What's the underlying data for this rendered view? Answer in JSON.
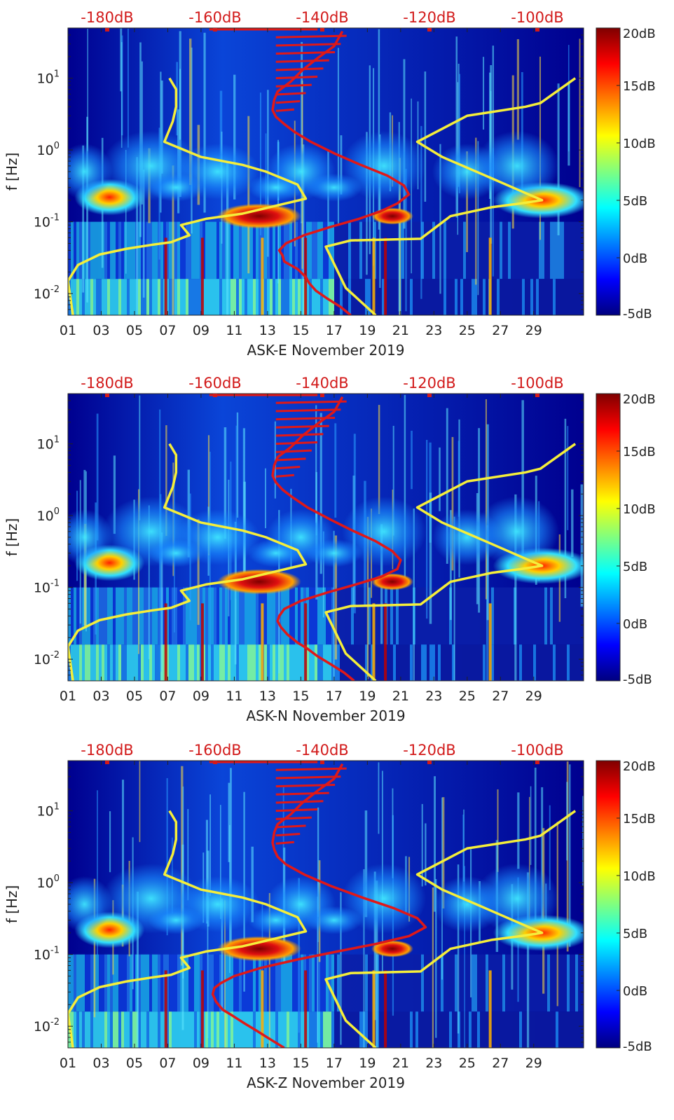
{
  "colors": {
    "red_curve": "#e01818",
    "yellow_curve": "#f5ee3a",
    "top_label": "#d21a1a",
    "axis": "#222222"
  },
  "colormap": "jet",
  "chart_data": [
    {
      "type": "heatmap",
      "title": "",
      "xlabel": "ASK-E November 2019",
      "ylabel": "f [Hz]",
      "x_range": [
        1,
        32
      ],
      "x_ticks": [
        "01",
        "03",
        "05",
        "07",
        "09",
        "11",
        "13",
        "15",
        "17",
        "19",
        "21",
        "23",
        "25",
        "27",
        "29"
      ],
      "y_scale": "log",
      "y_range": [
        0.005,
        50
      ],
      "y_ticks": [
        "10^-2",
        "10^-1",
        "10^0",
        "10^1"
      ],
      "colorbar": {
        "range": [
          -5,
          20
        ],
        "ticks": [
          "20dB",
          "15dB",
          "10dB",
          "5dB",
          "0dB",
          "-5dB"
        ]
      },
      "top_axis_ticks": [
        "-180dB",
        "-160dB",
        "-140dB",
        "-120dB",
        "-100dB"
      ],
      "red_curve": {
        "x": [
          18.0,
          17.4,
          16.6,
          15.9,
          15.5,
          15.3,
          14.8,
          14.0,
          13.9,
          13.7,
          14.1,
          15.2,
          16.8,
          18.5,
          19.8,
          20.8,
          21.5,
          21.2,
          20.2,
          18.6,
          17.0,
          15.6,
          14.6,
          14.0,
          13.5,
          13.3,
          13.4,
          13.6,
          14.4,
          15.1,
          16.0,
          17.0,
          17.5
        ],
        "y": [
          0.005,
          0.0065,
          0.0085,
          0.011,
          0.014,
          0.017,
          0.022,
          0.028,
          0.034,
          0.04,
          0.05,
          0.065,
          0.085,
          0.11,
          0.14,
          0.18,
          0.24,
          0.32,
          0.44,
          0.62,
          0.9,
          1.3,
          1.8,
          2.3,
          2.9,
          3.6,
          5,
          6.5,
          9,
          13,
          19,
          28,
          45
        ]
      },
      "yellow_curve": {
        "x": [
          1.3,
          1.0,
          1.6,
          2.9,
          4.5,
          6.1,
          7.2,
          8.3,
          7.8,
          9.3,
          11.5,
          15.3,
          14.8,
          12.9,
          11.5,
          9.0,
          6.8,
          7.3,
          7.5,
          7.5,
          7.1
        ],
        "y": [
          0.005,
          0.015,
          0.025,
          0.035,
          0.042,
          0.048,
          0.052,
          0.065,
          0.09,
          0.11,
          0.13,
          0.21,
          0.33,
          0.5,
          0.62,
          0.8,
          1.3,
          2.5,
          4.0,
          7.0,
          10.0
        ]
      },
      "yellow_curve_right": {
        "x": [
          19.5,
          17.7,
          16.5,
          18.0,
          22.2,
          24.0,
          26.5,
          28.2,
          29.5,
          28.2,
          26.0,
          23.5,
          22.0,
          25.0,
          28.5,
          29.4,
          31.5
        ],
        "y": [
          0.005,
          0.012,
          0.045,
          0.055,
          0.058,
          0.12,
          0.16,
          0.18,
          0.2,
          0.27,
          0.45,
          0.8,
          1.3,
          3.0,
          4.0,
          4.5,
          10.0
        ]
      }
    },
    {
      "type": "heatmap",
      "title": "",
      "xlabel": "ASK-N November 2019",
      "ylabel": "f [Hz]",
      "x_range": [
        1,
        32
      ],
      "x_ticks": [
        "01",
        "03",
        "05",
        "07",
        "09",
        "11",
        "13",
        "15",
        "17",
        "19",
        "21",
        "23",
        "25",
        "27",
        "29"
      ],
      "y_scale": "log",
      "y_range": [
        0.005,
        50
      ],
      "y_ticks": [
        "10^-2",
        "10^-1",
        "10^0",
        "10^1"
      ],
      "colorbar": {
        "range": [
          -5,
          20
        ],
        "ticks": [
          "20dB",
          "15dB",
          "10dB",
          "5dB",
          "0dB",
          "-5dB"
        ]
      },
      "top_axis_ticks": [
        "-180dB",
        "-160dB",
        "-140dB",
        "-120dB",
        "-100dB"
      ],
      "red_curve": {
        "x": [
          18.2,
          17.6,
          16.8,
          16.0,
          15.4,
          14.8,
          14.2,
          13.8,
          13.6,
          13.7,
          14.0,
          15.0,
          16.6,
          18.3,
          19.8,
          20.8,
          21.0,
          20.5,
          19.5,
          18.1,
          16.7,
          15.4,
          14.5,
          13.9,
          13.5,
          13.3,
          13.4,
          13.6,
          14.4,
          15.1,
          16.0,
          17.0,
          17.5
        ],
        "y": [
          0.005,
          0.0065,
          0.0085,
          0.011,
          0.014,
          0.017,
          0.022,
          0.028,
          0.034,
          0.04,
          0.05,
          0.065,
          0.085,
          0.11,
          0.14,
          0.18,
          0.24,
          0.32,
          0.44,
          0.62,
          0.9,
          1.3,
          1.8,
          2.3,
          2.9,
          3.6,
          5,
          6.5,
          9,
          13,
          19,
          28,
          45
        ]
      },
      "yellow_curve": {
        "x": [
          1.3,
          1.0,
          1.6,
          2.9,
          4.5,
          6.1,
          7.2,
          8.3,
          7.8,
          9.3,
          11.5,
          15.3,
          14.8,
          12.9,
          11.5,
          9.0,
          6.8,
          7.3,
          7.5,
          7.5,
          7.1
        ],
        "y": [
          0.005,
          0.015,
          0.025,
          0.035,
          0.042,
          0.048,
          0.052,
          0.065,
          0.09,
          0.11,
          0.13,
          0.21,
          0.33,
          0.5,
          0.62,
          0.8,
          1.3,
          2.5,
          4.0,
          7.0,
          10.0
        ]
      },
      "yellow_curve_right": {
        "x": [
          19.5,
          17.7,
          16.5,
          18.0,
          22.2,
          24.0,
          26.5,
          28.2,
          29.5,
          28.2,
          26.0,
          23.5,
          22.0,
          25.0,
          28.5,
          29.4,
          31.5
        ],
        "y": [
          0.005,
          0.012,
          0.045,
          0.055,
          0.058,
          0.12,
          0.16,
          0.18,
          0.2,
          0.27,
          0.45,
          0.8,
          1.3,
          3.0,
          4.0,
          4.5,
          10.0
        ]
      }
    },
    {
      "type": "heatmap",
      "title": "",
      "xlabel": "ASK-Z November 2019",
      "ylabel": "f [Hz]",
      "x_range": [
        1,
        32
      ],
      "x_ticks": [
        "01",
        "03",
        "05",
        "07",
        "09",
        "11",
        "13",
        "15",
        "17",
        "19",
        "21",
        "23",
        "25",
        "27",
        "29"
      ],
      "y_scale": "log",
      "y_range": [
        0.005,
        50
      ],
      "y_ticks": [
        "10^-2",
        "10^-1",
        "10^0",
        "10^1"
      ],
      "colorbar": {
        "range": [
          -5,
          20
        ],
        "ticks": [
          "20dB",
          "15dB",
          "10dB",
          "5dB",
          "0dB",
          "-5dB"
        ]
      },
      "top_axis_ticks": [
        "-180dB",
        "-160dB",
        "-140dB",
        "-120dB",
        "-100dB"
      ],
      "red_curve": {
        "x": [
          14.0,
          13.2,
          12.4,
          11.6,
          10.9,
          10.3,
          9.9,
          9.7,
          9.8,
          10.2,
          11.0,
          12.6,
          14.8,
          17.2,
          19.5,
          21.5,
          22.5,
          22.0,
          20.6,
          18.7,
          16.8,
          15.2,
          14.1,
          13.6,
          13.4,
          13.3,
          13.4,
          13.6,
          14.4,
          15.1,
          16.0,
          17.0,
          17.5
        ],
        "y": [
          0.005,
          0.0065,
          0.0085,
          0.011,
          0.014,
          0.017,
          0.022,
          0.028,
          0.034,
          0.04,
          0.05,
          0.065,
          0.085,
          0.11,
          0.14,
          0.18,
          0.24,
          0.32,
          0.44,
          0.62,
          0.9,
          1.3,
          1.8,
          2.3,
          2.9,
          3.6,
          5,
          6.5,
          9,
          13,
          19,
          28,
          45
        ]
      },
      "yellow_curve": {
        "x": [
          1.3,
          1.0,
          1.6,
          2.9,
          4.5,
          6.1,
          7.2,
          8.3,
          7.8,
          9.3,
          11.5,
          15.3,
          14.8,
          12.9,
          11.5,
          9.0,
          6.8,
          7.3,
          7.5,
          7.5,
          7.1
        ],
        "y": [
          0.005,
          0.015,
          0.025,
          0.035,
          0.042,
          0.048,
          0.052,
          0.065,
          0.09,
          0.11,
          0.13,
          0.21,
          0.33,
          0.5,
          0.62,
          0.8,
          1.3,
          2.5,
          4.0,
          7.0,
          10.0
        ]
      },
      "yellow_curve_right": {
        "x": [
          19.5,
          17.7,
          16.5,
          18.0,
          22.2,
          24.0,
          26.5,
          28.2,
          29.5,
          28.2,
          26.0,
          23.5,
          22.0,
          25.0,
          28.5,
          29.4,
          31.5
        ],
        "y": [
          0.005,
          0.012,
          0.045,
          0.055,
          0.058,
          0.12,
          0.16,
          0.18,
          0.2,
          0.27,
          0.45,
          0.8,
          1.3,
          3.0,
          4.0,
          4.5,
          10.0
        ]
      }
    }
  ]
}
